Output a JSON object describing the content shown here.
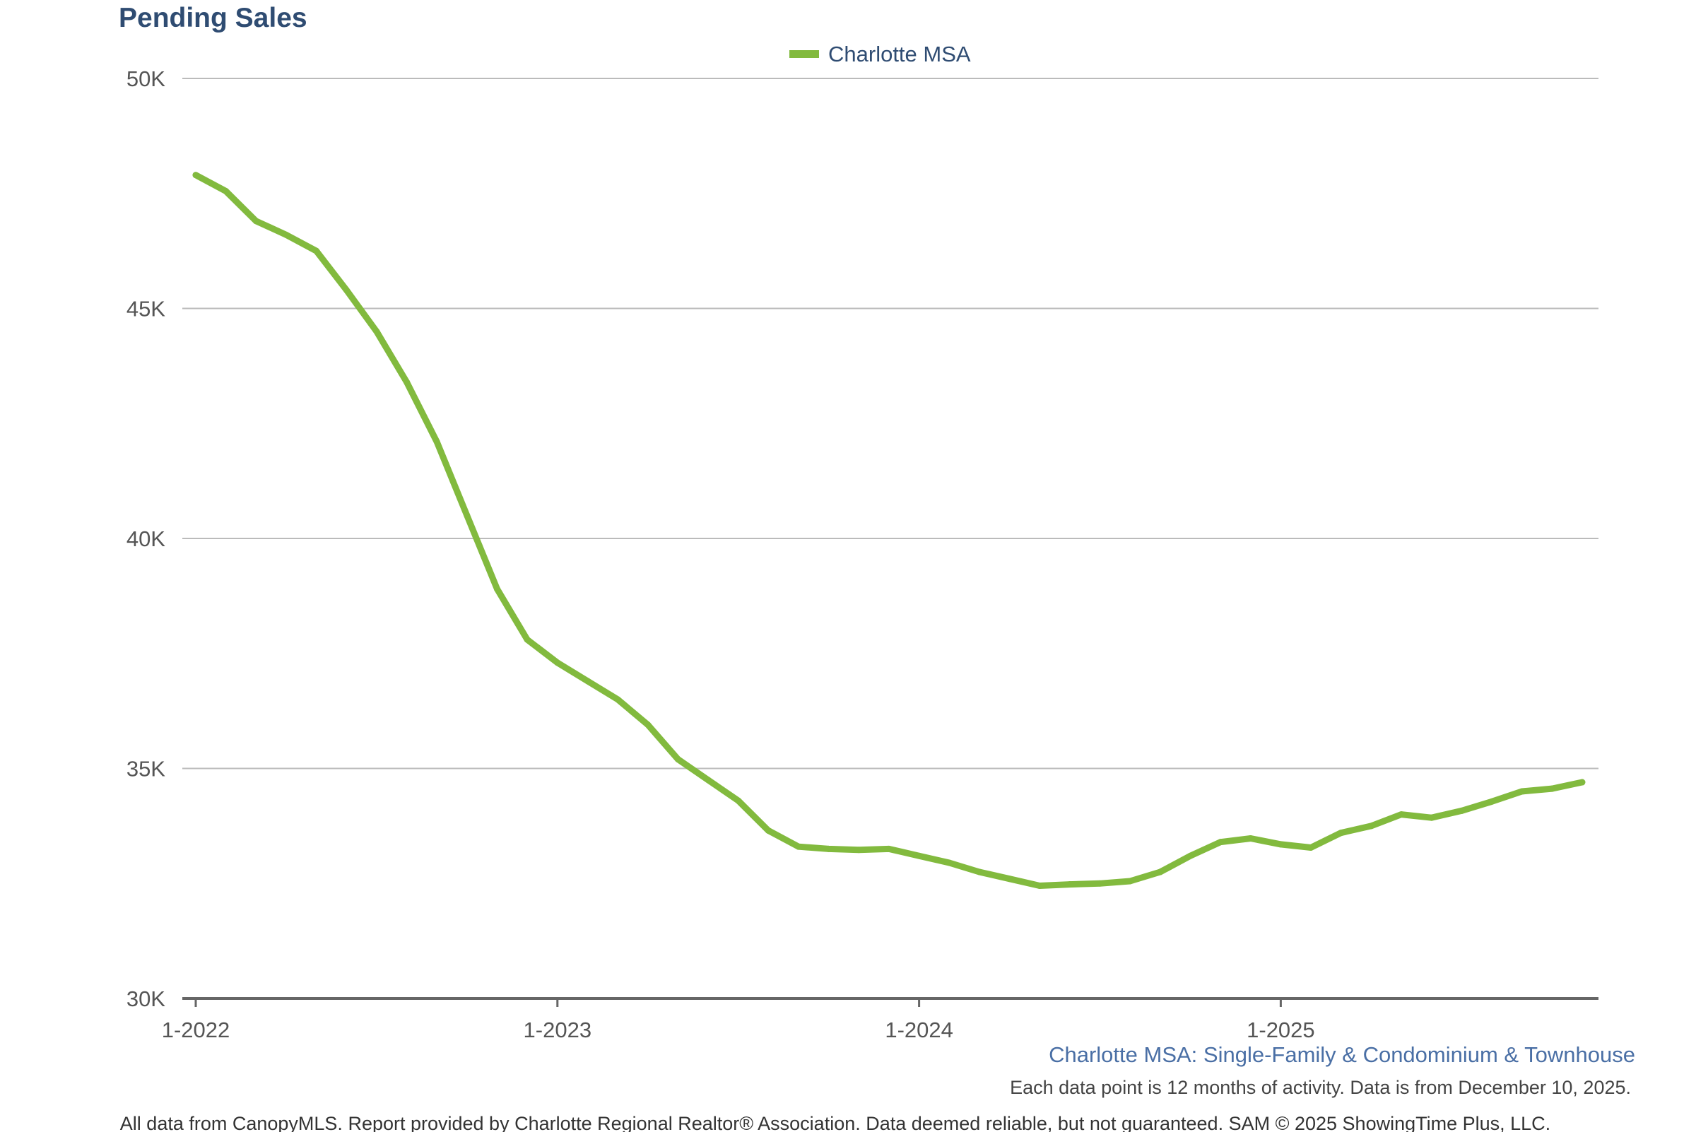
{
  "chart_data": {
    "type": "line",
    "title": "Pending Sales",
    "legend": {
      "entries": [
        "Charlotte MSA"
      ],
      "placement": "top-center"
    },
    "series": [
      {
        "name": "Charlotte MSA",
        "color": "#82ba3e",
        "values": [
          47900,
          47550,
          46900,
          46600,
          46250,
          45400,
          44500,
          43400,
          42100,
          40500,
          38900,
          37800,
          37300,
          36900,
          36500,
          35950,
          35200,
          34750,
          34300,
          33650,
          33300,
          33250,
          33230,
          33250,
          33100,
          32950,
          32750,
          32600,
          32450,
          32480,
          32500,
          32550,
          32750,
          33100,
          33400,
          33480,
          33350,
          33280,
          33600,
          33750,
          34000,
          33930,
          34080,
          34280,
          34500,
          34560,
          34700
        ]
      }
    ],
    "x": {
      "start_label": "1-2022",
      "count": 47
    },
    "xticks": [
      "1-2022",
      "1-2023",
      "1-2024",
      "1-2025"
    ],
    "yticks": [
      "30K",
      "35K",
      "40K",
      "45K",
      "50K"
    ],
    "ytick_values": [
      30000,
      35000,
      40000,
      45000,
      50000
    ],
    "ylim": [
      30000,
      50000
    ],
    "grid": true,
    "colors": {
      "title": "#2f4c72",
      "subtitle": "#4a6fa5",
      "gridline": "#bbbbbb",
      "axis": "#666666"
    }
  },
  "subtitle": "Charlotte MSA: Single-Family & Condominium & Townhouse",
  "note": "Each data point is 12 months of activity. Data is from December 10, 2025.",
  "footer": "All data from CanopyMLS. Report provided by Charlotte Regional Realtor® Association. Data deemed reliable, but not guaranteed. SAM © 2025 ShowingTime Plus, LLC."
}
